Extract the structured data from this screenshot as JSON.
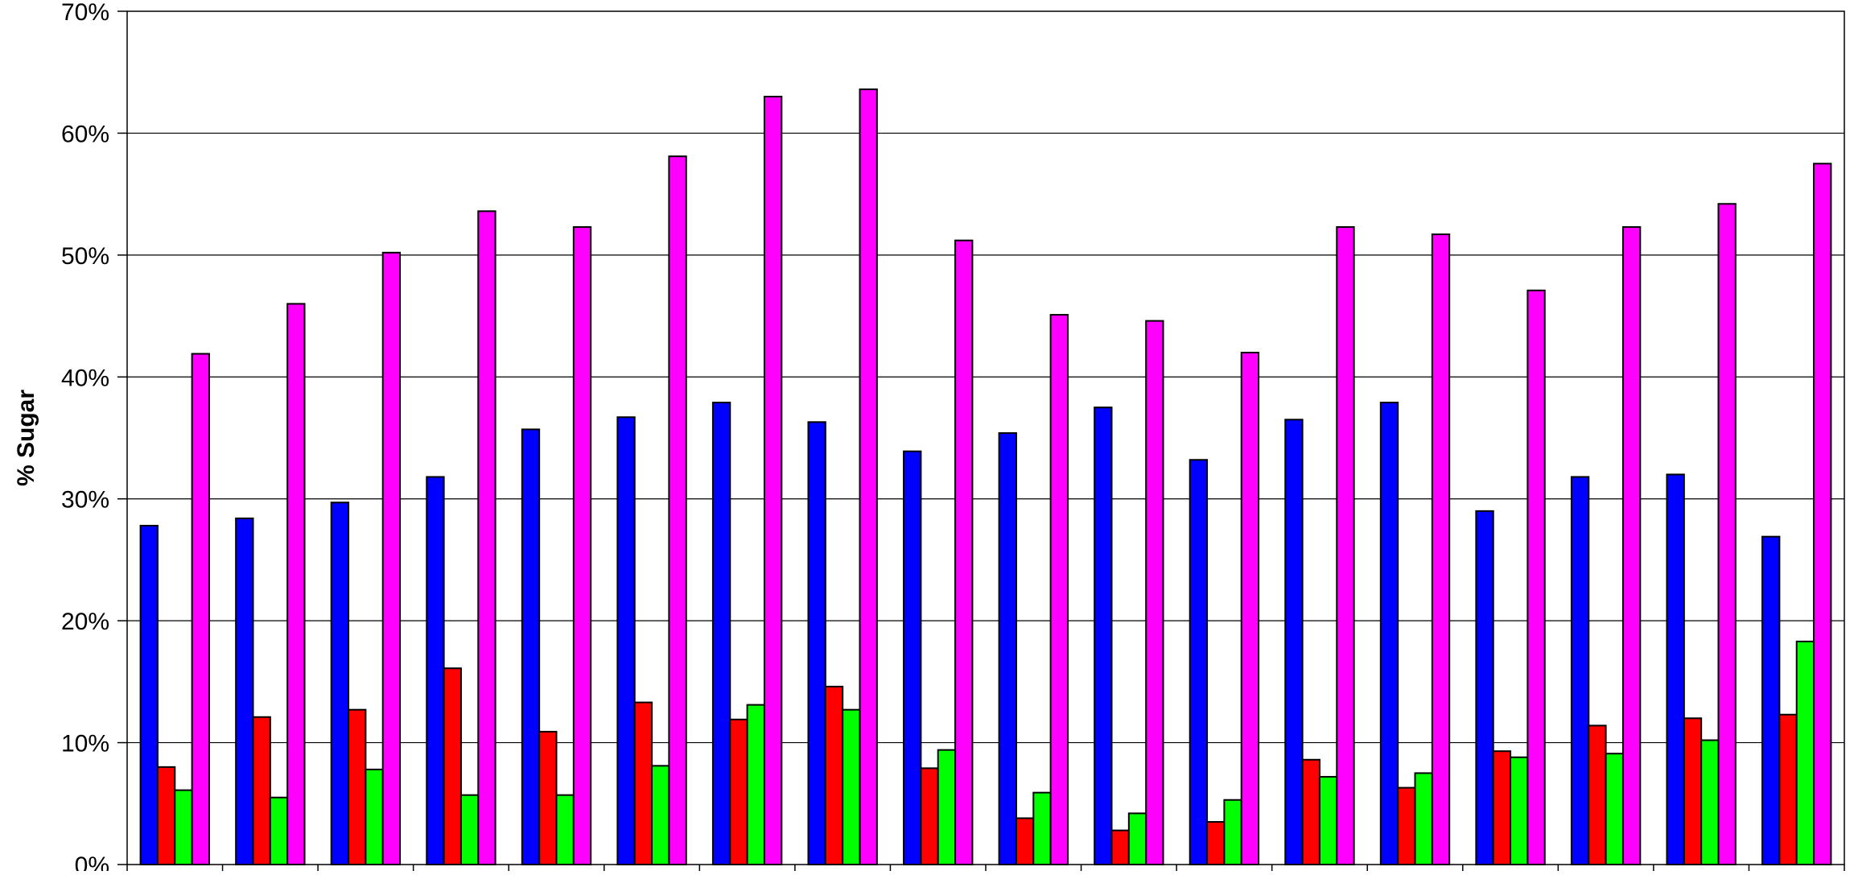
{
  "chart_data": {
    "type": "bar",
    "title": "",
    "xlabel": "",
    "ylabel": "% Sugar",
    "ylim": [
      0,
      70
    ],
    "yticks": [
      "0%",
      "10%",
      "20%",
      "30%",
      "40%",
      "50%",
      "60%",
      "70%"
    ],
    "grid": true,
    "legend": "none",
    "colors": [
      "#0000ff",
      "#ff0000",
      "#00ff00",
      "#ff00ff"
    ],
    "series": [
      {
        "values": [
          27.8,
          28.4,
          29.7,
          31.8,
          35.7,
          36.7,
          37.9,
          36.3,
          33.9,
          35.4,
          37.5,
          33.2,
          36.5,
          37.9,
          29.0,
          31.8,
          32.0,
          26.9
        ]
      },
      {
        "values": [
          8.0,
          12.1,
          12.7,
          16.1,
          10.9,
          13.3,
          11.9,
          14.6,
          7.9,
          3.8,
          2.8,
          3.5,
          8.6,
          6.3,
          9.3,
          11.4,
          12.0,
          12.3
        ]
      },
      {
        "values": [
          6.1,
          5.5,
          7.8,
          5.7,
          5.7,
          8.1,
          13.1,
          12.7,
          9.4,
          5.9,
          4.2,
          5.3,
          7.2,
          7.5,
          8.8,
          9.1,
          10.2,
          18.3
        ]
      },
      {
        "values": [
          41.9,
          46.0,
          50.2,
          53.6,
          52.3,
          58.1,
          63.0,
          63.6,
          51.2,
          45.1,
          44.6,
          42.0,
          52.3,
          51.7,
          47.1,
          52.3,
          54.2,
          57.5
        ]
      }
    ]
  }
}
